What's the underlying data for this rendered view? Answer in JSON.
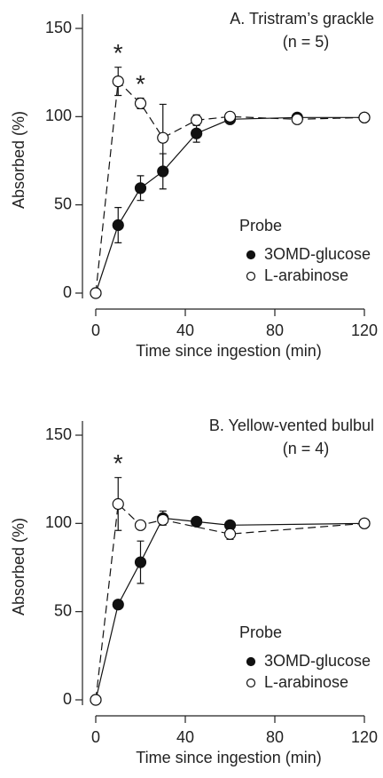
{
  "chart_data": [
    {
      "type": "line",
      "title": "A. Tristram’s grackle",
      "subtitle": "(n = 5)",
      "xlabel": "Time since ingestion (min)",
      "ylabel": "Absorbed (%)",
      "xlim": [
        0,
        120
      ],
      "xticks": [
        0,
        40,
        80,
        120
      ],
      "ylim": [
        0,
        150
      ],
      "yticks": [
        0,
        50,
        100,
        150
      ],
      "legend_title": "Probe",
      "series": [
        {
          "name": "3OMD-glucose",
          "color": "#111111",
          "marker": "filled",
          "dashed": false,
          "x": [
            0,
            10,
            20,
            30,
            45,
            60,
            90,
            120
          ],
          "values": [
            0,
            38.5,
            59.5,
            69,
            90.5,
            98.5,
            99.5,
            99.5
          ],
          "errors": [
            0,
            10,
            7,
            10,
            5,
            2,
            2,
            2
          ]
        },
        {
          "name": "L-arabinose",
          "color": "#111111",
          "marker": "open",
          "dashed": true,
          "x": [
            0,
            10,
            20,
            30,
            45,
            60,
            90,
            120
          ],
          "values": [
            0,
            120,
            107.5,
            88,
            98,
            100,
            98.5,
            99.5
          ],
          "errors": [
            0,
            8,
            3,
            19,
            3,
            2,
            2,
            2
          ]
        }
      ],
      "annotations": [
        {
          "text": "*",
          "x": 10
        },
        {
          "text": "*",
          "x": 20
        }
      ]
    },
    {
      "type": "line",
      "title": "B. Yellow-vented bulbul",
      "subtitle": "(n = 4)",
      "xlabel": "Time since ingestion (min)",
      "ylabel": "Absorbed (%)",
      "xlim": [
        0,
        120
      ],
      "xticks": [
        0,
        40,
        80,
        120
      ],
      "ylim": [
        0,
        150
      ],
      "yticks": [
        0,
        50,
        100,
        150
      ],
      "legend_title": "Probe",
      "series": [
        {
          "name": "3OMD-glucose",
          "color": "#111111",
          "marker": "filled",
          "dashed": false,
          "x": [
            0,
            10,
            20,
            30,
            45,
            60,
            120
          ],
          "values": [
            0,
            54,
            78,
            103,
            101,
            99,
            100
          ],
          "errors": [
            0,
            2,
            12,
            4,
            2,
            2,
            2
          ]
        },
        {
          "name": "L-arabinose",
          "color": "#111111",
          "marker": "open",
          "dashed": true,
          "x": [
            0,
            10,
            20,
            30,
            60,
            120
          ],
          "values": [
            0,
            111,
            99,
            102,
            94,
            100
          ],
          "errors": [
            0,
            15,
            2,
            2,
            3,
            2
          ]
        }
      ],
      "annotations": [
        {
          "text": "*",
          "x": 10
        }
      ]
    }
  ]
}
